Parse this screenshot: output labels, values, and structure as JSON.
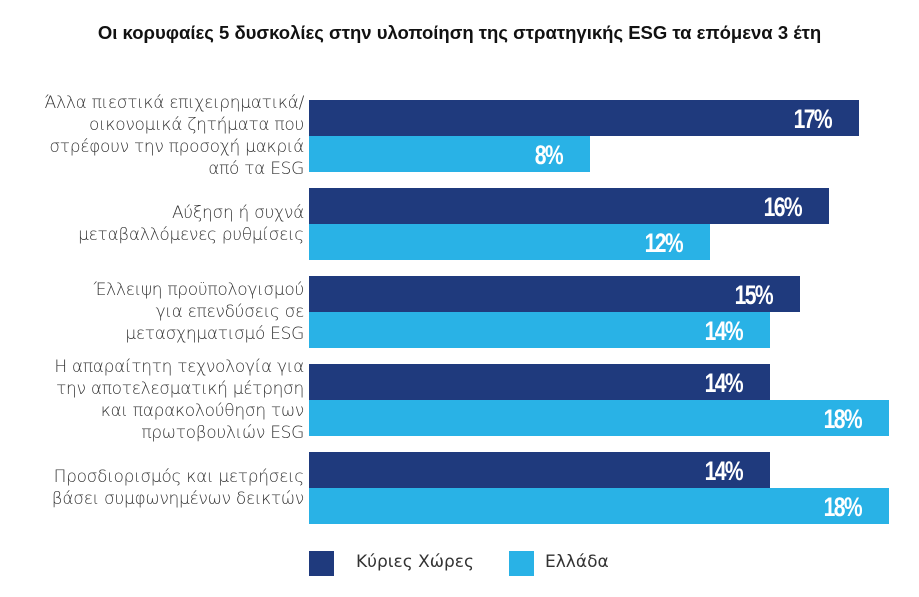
{
  "chart_data": {
    "type": "bar",
    "orientation": "horizontal",
    "title": "Οι κορυφαίες 5 δυσκολίες στην υλοποίηση της στρατηγικής ESG τα επόμενα 3 έτη",
    "categories": [
      [
        "Άλλα πιεστικά επιχειρηματικά/",
        "οικονομικά ζητήματα που",
        "στρέφουν την προσοχή μακριά",
        "από τα ESG"
      ],
      [
        "Αύξηση ή συχνά",
        "μεταβαλλόμενες ρυθμίσεις"
      ],
      [
        "Έλλειψη προϋπολογισμού",
        "για επενδύσεις σε",
        "μετασχηματισμό ESG"
      ],
      [
        "Η απαραίτητη τεχνολογία για",
        "την αποτελεσματική μέτρηση",
        "και παρακολούθηση των",
        "πρωτοβουλιών  ESG"
      ],
      [
        "Προσδιορισμός και μετρήσεις",
        "βάσει συμφωνημένων δεικτών"
      ]
    ],
    "series": [
      {
        "name": "Κύριες Χώρες",
        "color": "#1f3a7d",
        "values": [
          17,
          16,
          15,
          14,
          14
        ],
        "labels": [
          "17%",
          "16%",
          "15%",
          "14%",
          "14%"
        ]
      },
      {
        "name": "Ελλάδα",
        "color": "#29b2e6",
        "values": [
          8,
          12,
          14,
          18,
          18
        ],
        "labels": [
          "8%",
          "12%",
          "14%",
          "18%",
          "18%"
        ]
      }
    ],
    "xlabel": "",
    "ylabel": "",
    "grid": false,
    "legend": "bottom"
  }
}
